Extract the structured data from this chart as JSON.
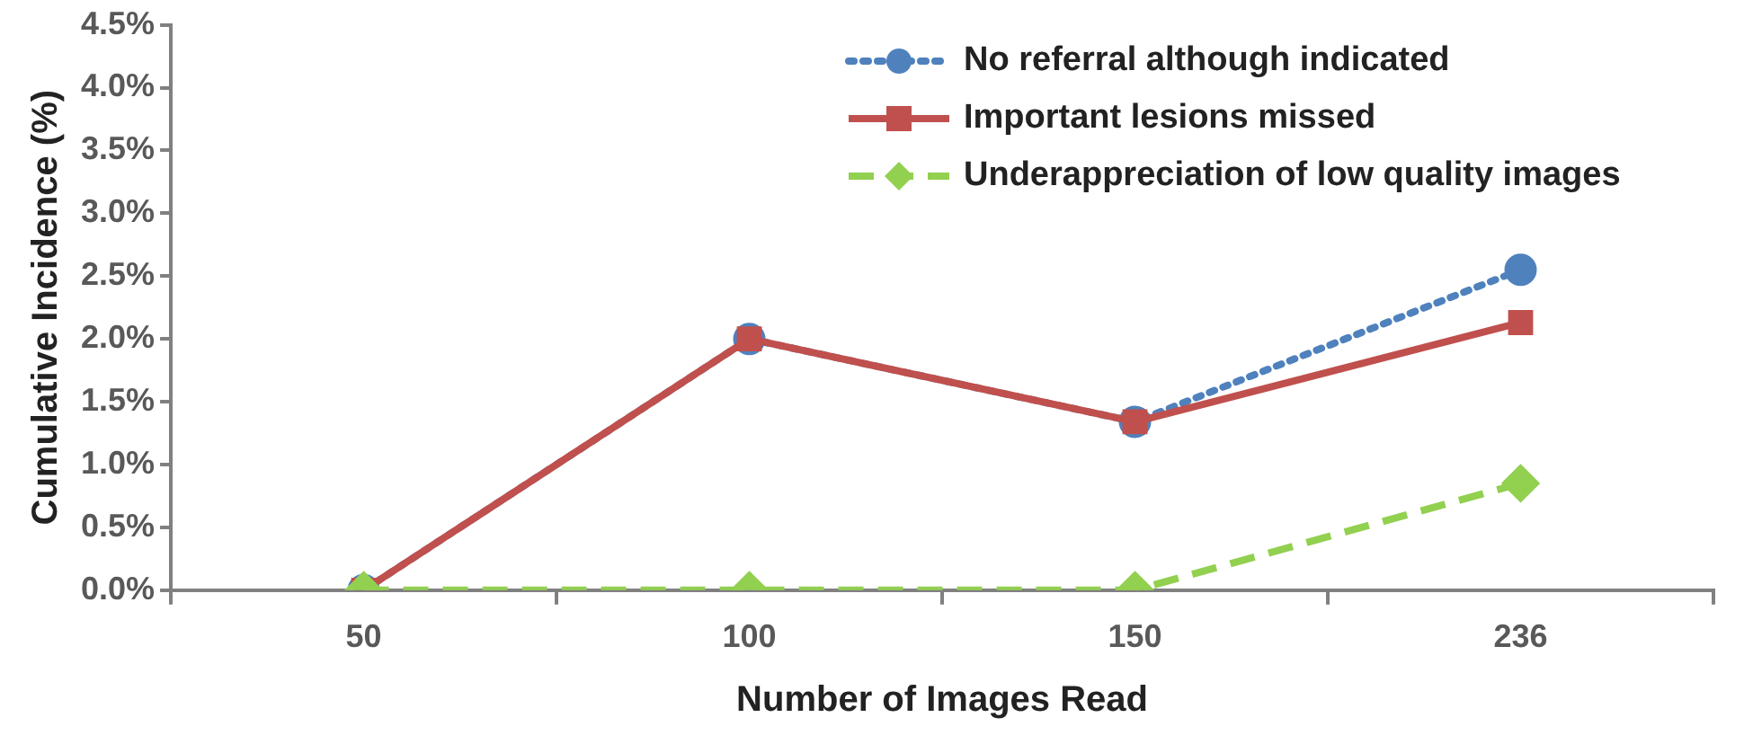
{
  "chart_data": {
    "type": "line",
    "xlabel": "Number of Images Read",
    "ylabel": "Cumulative Incidence (%)",
    "categories": [
      "50",
      "100",
      "150",
      "236"
    ],
    "ylim": [
      0,
      4.5
    ],
    "yticks": [
      {
        "value": 0,
        "label": "0.0%"
      },
      {
        "value": 0.5,
        "label": "0.5%"
      },
      {
        "value": 1,
        "label": "1.0%"
      },
      {
        "value": 1.5,
        "label": "1.5%"
      },
      {
        "value": 2,
        "label": "2.0%"
      },
      {
        "value": 2.5,
        "label": "2.5%"
      },
      {
        "value": 3,
        "label": "3.0%"
      },
      {
        "value": 3.5,
        "label": "3.5%"
      },
      {
        "value": 4,
        "label": "4.0%"
      },
      {
        "value": 4.5,
        "label": "4.5%"
      }
    ],
    "grid": false,
    "legend": "top right",
    "series": [
      {
        "name": "No referral although indicated",
        "color": "#4f81bd",
        "marker": "circle",
        "line_style": "dotted",
        "values": [
          0,
          2.0,
          1.34,
          2.55
        ]
      },
      {
        "name": "Important lesions missed",
        "color": "#c0504d",
        "marker": "square",
        "line_style": "solid",
        "values": [
          0,
          2.0,
          1.34,
          2.13
        ]
      },
      {
        "name": "Underappreciation of low quality images",
        "color": "#92d050",
        "marker": "diamond",
        "line_style": "dashed",
        "values": [
          0,
          0,
          0,
          0.85
        ]
      }
    ]
  }
}
